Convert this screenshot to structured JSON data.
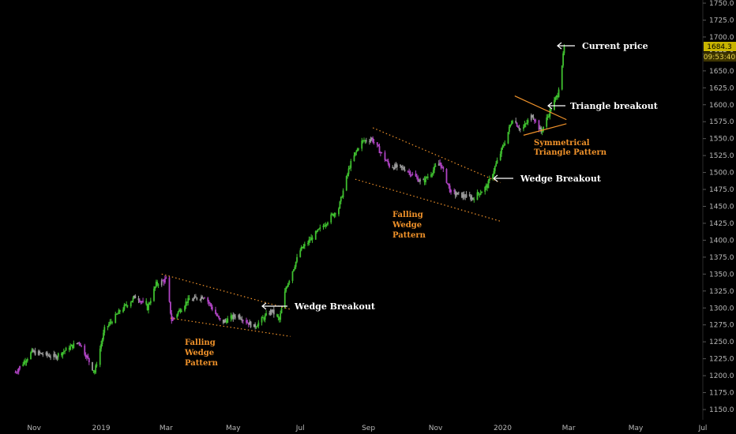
{
  "chart_data": {
    "type": "candlestick",
    "title": "",
    "y_ticks": [
      1150,
      1175,
      1200,
      1225,
      1250,
      1275,
      1300,
      1325,
      1350,
      1375,
      1400,
      1425,
      1450,
      1475,
      1500,
      1525,
      1550,
      1575,
      1600,
      1625,
      1650,
      1675,
      1700,
      1725,
      1750
    ],
    "y_tick_labels": [
      "1150.0",
      "1175.0",
      "1200.0",
      "1225.0",
      "1250.0",
      "1275.0",
      "1300.0",
      "1325.0",
      "1350.0",
      "1375.0",
      "1400.0",
      "1425.0",
      "1450.0",
      "1475.0",
      "1500.0",
      "1525.0",
      "1550.0",
      "1575.0",
      "1600.0",
      "1625.0",
      "1650.0",
      "1675.0",
      "1700.0",
      "1725.0",
      "1750.0"
    ],
    "ylim": [
      1130,
      1763
    ],
    "x_tick_labels": [
      "Nov",
      "2019",
      "Mar",
      "May",
      "Jul",
      "Sep",
      "Nov",
      "2020",
      "Mar",
      "May",
      "Jul"
    ],
    "current_price": "1684.3",
    "countdown": "09:53:40",
    "price_path": [
      [
        "2018-10-15",
        1205
      ],
      [
        "2018-10-30",
        1235
      ],
      [
        "2018-11-20",
        1228
      ],
      [
        "2018-12-12",
        1250
      ],
      [
        "2018-12-26",
        1205
      ],
      [
        "2019-01-04",
        1268
      ],
      [
        "2019-01-18",
        1295
      ],
      [
        "2019-02-02",
        1318
      ],
      [
        "2019-02-12",
        1300
      ],
      [
        "2019-02-20",
        1335
      ],
      [
        "2019-03-01",
        1342
      ],
      [
        "2019-03-06",
        1282
      ],
      [
        "2019-03-20",
        1310
      ],
      [
        "2019-04-05",
        1318
      ],
      [
        "2019-04-20",
        1278
      ],
      [
        "2019-05-05",
        1290
      ],
      [
        "2019-05-20",
        1272
      ],
      [
        "2019-06-05",
        1296
      ],
      [
        "2019-06-12",
        1282
      ],
      [
        "2019-06-18",
        1330
      ],
      [
        "2019-07-01",
        1385
      ],
      [
        "2019-07-20",
        1418
      ],
      [
        "2019-08-05",
        1448
      ],
      [
        "2019-08-15",
        1510
      ],
      [
        "2019-08-25",
        1545
      ],
      [
        "2019-09-04",
        1550
      ],
      [
        "2019-09-20",
        1510
      ],
      [
        "2019-10-05",
        1505
      ],
      [
        "2019-10-20",
        1485
      ],
      [
        "2019-11-05",
        1515
      ],
      [
        "2019-11-15",
        1470
      ],
      [
        "2019-12-05",
        1462
      ],
      [
        "2019-12-18",
        1480
      ],
      [
        "2019-12-28",
        1520
      ],
      [
        "2020-01-04",
        1550
      ],
      [
        "2020-01-10",
        1580
      ],
      [
        "2020-01-18",
        1562
      ],
      [
        "2020-01-28",
        1585
      ],
      [
        "2020-02-05",
        1560
      ],
      [
        "2020-02-15",
        1598
      ],
      [
        "2020-02-20",
        1615
      ],
      [
        "2020-02-24",
        1660
      ],
      [
        "2020-02-26",
        1684
      ]
    ],
    "annotations": {
      "current_price": "Current price",
      "triangle_breakout": "Triangle breakout",
      "triangle_pattern_1": "Symmetrical",
      "triangle_pattern_2": "Triangle Pattern",
      "wedge_breakout_1": "Wedge Breakout",
      "wedge_breakout_2": "Wedge Breakout",
      "falling_wedge_1": [
        "Falling",
        "Wedge",
        "Pattern"
      ],
      "falling_wedge_2": [
        "Falling",
        "Wedge",
        "Pattern"
      ]
    },
    "trendlines": [
      {
        "name": "wedge1-upper",
        "color": "#f0922a",
        "style": "dotted",
        "from": [
          "2019-02-25",
          1350
        ],
        "to": [
          "2019-06-22",
          1298
        ]
      },
      {
        "name": "wedge1-lower",
        "color": "#f0922a",
        "style": "dotted",
        "from": [
          "2019-03-05",
          1285
        ],
        "to": [
          "2019-06-22",
          1258
        ]
      },
      {
        "name": "wedge2-upper",
        "color": "#f0922a",
        "style": "dotted",
        "from": [
          "2019-09-05",
          1566
        ],
        "to": [
          "2019-12-30",
          1485
        ]
      },
      {
        "name": "wedge2-lower",
        "color": "#f0922a",
        "style": "dotted",
        "from": [
          "2019-08-20",
          1490
        ],
        "to": [
          "2019-12-30",
          1428
        ]
      },
      {
        "name": "triangle-upper",
        "color": "#f0922a",
        "style": "solid",
        "from": [
          "2020-01-12",
          1613
        ],
        "to": [
          "2020-02-28",
          1578
        ]
      },
      {
        "name": "triangle-lower",
        "color": "#f0922a",
        "style": "solid",
        "from": [
          "2020-01-20",
          1555
        ],
        "to": [
          "2020-02-28",
          1572
        ]
      }
    ],
    "colors": {
      "background": "#000000",
      "bull": "#3fbf2f",
      "neutral": "#9a9a9a",
      "bear": "#b044c4",
      "annotation_orange": "#f0922a",
      "price_tag": "#c8b400"
    }
  }
}
